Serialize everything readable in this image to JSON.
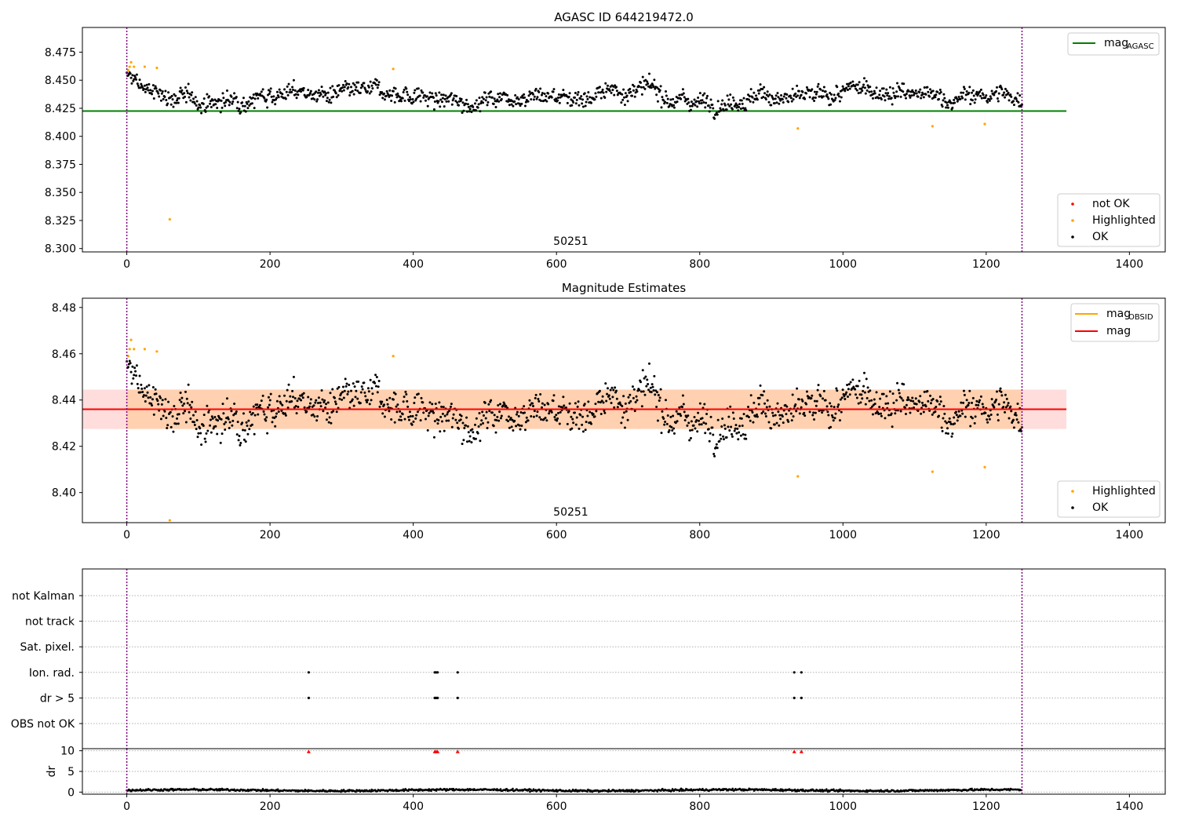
{
  "chart_data": [
    {
      "type": "scatter",
      "title": "AGASC ID 644219472.0",
      "x_ticks": [
        0,
        200,
        400,
        600,
        800,
        1000,
        1200,
        1400
      ],
      "y_ticks": [
        "8.300",
        "8.325",
        "8.350",
        "8.375",
        "8.400",
        "8.425",
        "8.450",
        "8.475"
      ],
      "xlim": [
        -62,
        1450
      ],
      "ylim": [
        8.297,
        8.497
      ],
      "mag_agasc": 8.4225,
      "obsid_label": "50251",
      "obs_bounds": [
        0,
        1250
      ],
      "legend_upper": [
        {
          "name": "mag",
          "sub": "AGASC",
          "color": "#008000"
        }
      ],
      "legend_lower": [
        {
          "name": "not OK",
          "color": "#ff0000"
        },
        {
          "name": "Highlighted",
          "color": "#ffa500"
        },
        {
          "name": "OK",
          "color": "#000000"
        }
      ],
      "highlighted_points": [
        [
          2,
          8.459
        ],
        [
          4,
          8.462
        ],
        [
          6,
          8.466
        ],
        [
          10,
          8.462
        ],
        [
          25,
          8.462
        ],
        [
          42,
          8.461
        ],
        [
          60,
          8.326
        ],
        [
          372,
          8.46
        ],
        [
          937,
          8.407
        ],
        [
          1125,
          8.409
        ],
        [
          1198,
          8.411
        ]
      ],
      "ok_series": {
        "n": 1250,
        "x_start": 0,
        "x_end": 1250,
        "mean": 8.436,
        "spread": 0.009
      }
    },
    {
      "type": "scatter",
      "title": "Magnitude Estimates",
      "x_ticks": [
        0,
        200,
        400,
        600,
        800,
        1000,
        1200,
        1400
      ],
      "y_ticks": [
        "8.40",
        "8.42",
        "8.44",
        "8.46",
        "8.48"
      ],
      "xlim": [
        -62,
        1450
      ],
      "ylim": [
        8.387,
        8.484
      ],
      "mag": 8.436,
      "mag_band": [
        8.4275,
        8.4445
      ],
      "obsid_label": "50251",
      "obs_bounds": [
        0,
        1250
      ],
      "legend_upper": [
        {
          "name": "mag",
          "sub": "OBSID",
          "color": "#ffa500"
        },
        {
          "name": "mag",
          "sub": "",
          "color": "#ff0000"
        }
      ],
      "legend_lower": [
        {
          "name": "Highlighted",
          "color": "#ffa500"
        },
        {
          "name": "OK",
          "color": "#000000"
        }
      ],
      "highlighted_points": [
        [
          2,
          8.459
        ],
        [
          4,
          8.462
        ],
        [
          6,
          8.466
        ],
        [
          10,
          8.462
        ],
        [
          25,
          8.462
        ],
        [
          42,
          8.461
        ],
        [
          60,
          8.388
        ],
        [
          372,
          8.459
        ],
        [
          937,
          8.407
        ],
        [
          1125,
          8.409
        ],
        [
          1198,
          8.411
        ]
      ]
    },
    {
      "type": "scatter",
      "title": "",
      "categories": [
        "OBS not OK",
        "dr > 5",
        "Ion. rad.",
        "Sat. pixel.",
        "not track",
        "not Kalman"
      ],
      "flag_points": {
        "dr > 5": [
          254,
          430,
          432,
          434,
          462,
          932,
          942
        ],
        "Ion. rad.": [
          254,
          430,
          432,
          434,
          462,
          932,
          942
        ]
      },
      "xlim": [
        -62,
        1450
      ],
      "x_ticks": [
        0,
        200,
        400,
        600,
        800,
        1000,
        1200,
        1400
      ],
      "obs_bounds": [
        0,
        1250
      ]
    },
    {
      "type": "scatter",
      "title": "",
      "ylabel": "dr",
      "y_ticks": [
        "0",
        "5",
        "10"
      ],
      "ylim": [
        -0.5,
        10.5
      ],
      "xlim": [
        -62,
        1450
      ],
      "x_ticks": [
        0,
        200,
        400,
        600,
        800,
        1000,
        1200,
        1400
      ],
      "clipped_points": [
        254,
        430,
        432,
        434,
        462,
        932,
        942
      ],
      "dr_mean": 0.45
    }
  ]
}
